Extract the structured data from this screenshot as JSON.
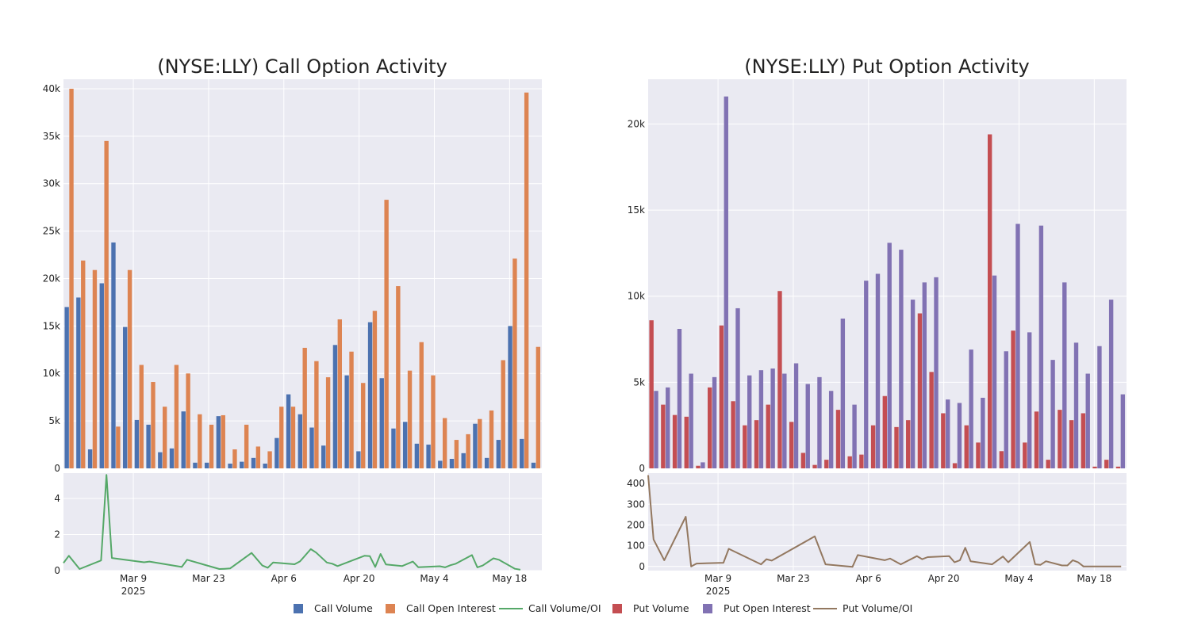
{
  "colors": {
    "call_volume": "#4c72b0",
    "call_open_interest": "#dd8452",
    "call_ratio": "#55a868",
    "put_volume": "#c44e52",
    "put_open_interest": "#8172b3",
    "put_ratio": "#937860",
    "panel_background": "#eaeaf2",
    "grid": "#ffffff"
  },
  "x_axis": {
    "tick_labels": [
      "Mar 9",
      "Mar 23",
      "Apr 6",
      "Apr 20",
      "May 4",
      "May 18"
    ],
    "year_label": "2025"
  },
  "legend": [
    {
      "key": "call_volume",
      "label": "Call Volume",
      "shape": "square"
    },
    {
      "key": "call_open_interest",
      "label": "Call Open Interest",
      "shape": "square"
    },
    {
      "key": "call_ratio",
      "label": "Call Volume/OI",
      "shape": "line"
    },
    {
      "key": "put_volume",
      "label": "Put Volume",
      "shape": "square"
    },
    {
      "key": "put_open_interest",
      "label": "Put Open Interest",
      "shape": "square"
    },
    {
      "key": "put_ratio",
      "label": "Put Volume/OI",
      "shape": "line"
    }
  ],
  "chart_data": [
    {
      "type": "bar",
      "title": "(NYSE:LLY) Call Option Activity",
      "x_start": "2025-02-24",
      "x_end": "2025-05-24",
      "ylim": [
        0,
        41000
      ],
      "yticks": [
        0,
        5000,
        10000,
        15000,
        20000,
        25000,
        30000,
        35000,
        40000
      ],
      "ytick_labels": [
        "0",
        "5k",
        "10k",
        "15k",
        "20k",
        "25k",
        "30k",
        "35k",
        "40k"
      ],
      "grid": true,
      "series": [
        {
          "name": "Call Volume",
          "key": "call_volume",
          "values": [
            17000,
            18000,
            2000,
            19500,
            23800,
            14900,
            5100,
            4600,
            1700,
            2100,
            6000,
            600,
            600,
            5500,
            500,
            700,
            1100,
            500,
            3200,
            7800,
            5700,
            4300,
            2400,
            13000,
            9800,
            1800,
            15400,
            9500,
            4200,
            4900,
            2600,
            2500,
            800,
            1000,
            1600,
            4700,
            1100,
            3000,
            15000,
            3100,
            600
          ]
        },
        {
          "name": "Call Open Interest",
          "key": "call_open_interest",
          "values": [
            40000,
            21900,
            20900,
            34500,
            4400,
            20900,
            10900,
            9100,
            6500,
            10900,
            10000,
            5700,
            4600,
            5600,
            2000,
            4600,
            2300,
            1800,
            6500,
            6500,
            12700,
            11300,
            9600,
            15700,
            12300,
            9000,
            16600,
            28300,
            19200,
            10300,
            13300,
            9800,
            5300,
            3000,
            3600,
            5200,
            6100,
            11400,
            22100,
            39600,
            12800
          ]
        }
      ],
      "ratio": {
        "name": "Call Volume/OI",
        "key": "call_ratio",
        "ylim": [
          0,
          5.4
        ],
        "yticks": [
          0,
          2,
          4
        ],
        "ytick_labels": [
          "0",
          "2",
          "4"
        ],
        "points": [
          [
            "2025-02-24",
            0.42
          ],
          [
            "2025-02-25",
            0.82
          ],
          [
            "2025-02-27",
            0.09
          ],
          [
            "2025-03-03",
            0.56
          ],
          [
            "2025-03-04",
            5.3
          ],
          [
            "2025-03-05",
            0.7
          ],
          [
            "2025-03-11",
            0.46
          ],
          [
            "2025-03-12",
            0.5
          ],
          [
            "2025-03-18",
            0.2
          ],
          [
            "2025-03-19",
            0.6
          ],
          [
            "2025-03-25",
            0.09
          ],
          [
            "2025-03-26",
            0.1
          ],
          [
            "2025-03-27",
            0.12
          ],
          [
            "2025-03-31",
            0.98
          ],
          [
            "2025-04-02",
            0.28
          ],
          [
            "2025-04-03",
            0.16
          ],
          [
            "2025-04-04",
            0.45
          ],
          [
            "2025-04-08",
            0.35
          ],
          [
            "2025-04-09",
            0.51
          ],
          [
            "2025-04-11",
            1.19
          ],
          [
            "2025-04-12",
            1.0
          ],
          [
            "2025-04-14",
            0.45
          ],
          [
            "2025-04-15",
            0.38
          ],
          [
            "2025-04-16",
            0.25
          ],
          [
            "2025-04-21",
            0.82
          ],
          [
            "2025-04-22",
            0.8
          ],
          [
            "2025-04-23",
            0.2
          ],
          [
            "2025-04-24",
            0.92
          ],
          [
            "2025-04-25",
            0.34
          ],
          [
            "2025-04-28",
            0.25
          ],
          [
            "2025-04-30",
            0.5
          ],
          [
            "2025-05-01",
            0.19
          ],
          [
            "2025-05-05",
            0.24
          ],
          [
            "2025-05-06",
            0.18
          ],
          [
            "2025-05-07",
            0.3
          ],
          [
            "2025-05-08",
            0.38
          ],
          [
            "2025-05-11",
            0.86
          ],
          [
            "2025-05-12",
            0.18
          ],
          [
            "2025-05-13",
            0.28
          ],
          [
            "2025-05-15",
            0.68
          ],
          [
            "2025-05-16",
            0.6
          ],
          [
            "2025-05-19",
            0.1
          ],
          [
            "2025-05-20",
            0.05
          ]
        ]
      }
    },
    {
      "type": "bar",
      "title": "(NYSE:LLY) Put Option Activity",
      "x_start": "2025-02-24",
      "x_end": "2025-05-24",
      "ylim": [
        0,
        22600
      ],
      "yticks": [
        0,
        5000,
        10000,
        15000,
        20000
      ],
      "ytick_labels": [
        "0",
        "5k",
        "10k",
        "15k",
        "20k"
      ],
      "grid": true,
      "series": [
        {
          "name": "Put Volume",
          "key": "put_volume",
          "values": [
            8600,
            3700,
            3100,
            3000,
            150,
            4700,
            8300,
            3900,
            2500,
            2800,
            3700,
            10300,
            2700,
            900,
            200,
            500,
            3400,
            700,
            800,
            2500,
            4200,
            2400,
            2800,
            9000,
            5600,
            3200,
            300,
            2500,
            1500,
            19400,
            1000,
            8000,
            1500,
            3300,
            500,
            3400,
            2800,
            3200,
            100,
            500,
            100
          ]
        },
        {
          "name": "Put Open Interest",
          "key": "put_open_interest",
          "values": [
            4500,
            4700,
            8100,
            5500,
            350,
            5300,
            21600,
            9300,
            5400,
            5700,
            5800,
            5500,
            6100,
            4900,
            5300,
            4500,
            8700,
            3700,
            10900,
            11300,
            13100,
            12700,
            9800,
            10800,
            11100,
            4000,
            3800,
            6900,
            4100,
            11200,
            6800,
            14200,
            7900,
            14100,
            6300,
            10800,
            7300,
            5500,
            7100,
            9800,
            4300
          ]
        }
      ],
      "ratio": {
        "name": "Put Volume/OI",
        "key": "put_ratio",
        "ylim": [
          -20,
          450
        ],
        "yticks": [
          0,
          100,
          200,
          300,
          400
        ],
        "ytick_labels": [
          "0",
          "100",
          "200",
          "300",
          "400"
        ],
        "points": [
          [
            "2025-02-24",
            440
          ],
          [
            "2025-02-25",
            130
          ],
          [
            "2025-02-27",
            30
          ],
          [
            "2025-03-03",
            240
          ],
          [
            "2025-03-04",
            0
          ],
          [
            "2025-03-05",
            14
          ],
          [
            "2025-03-10",
            18
          ],
          [
            "2025-03-11",
            85
          ],
          [
            "2025-03-17",
            10
          ],
          [
            "2025-03-18",
            35
          ],
          [
            "2025-03-19",
            28
          ],
          [
            "2025-03-27",
            145
          ],
          [
            "2025-03-29",
            10
          ],
          [
            "2025-04-03",
            -2
          ],
          [
            "2025-04-04",
            55
          ],
          [
            "2025-04-09",
            30
          ],
          [
            "2025-04-10",
            38
          ],
          [
            "2025-04-12",
            10
          ],
          [
            "2025-04-15",
            50
          ],
          [
            "2025-04-16",
            35
          ],
          [
            "2025-04-17",
            45
          ],
          [
            "2025-04-21",
            50
          ],
          [
            "2025-04-22",
            20
          ],
          [
            "2025-04-23",
            30
          ],
          [
            "2025-04-24",
            90
          ],
          [
            "2025-04-25",
            25
          ],
          [
            "2025-04-29",
            10
          ],
          [
            "2025-05-01",
            48
          ],
          [
            "2025-05-02",
            20
          ],
          [
            "2025-05-06",
            118
          ],
          [
            "2025-05-07",
            10
          ],
          [
            "2025-05-08",
            8
          ],
          [
            "2025-05-09",
            25
          ],
          [
            "2025-05-12",
            5
          ],
          [
            "2025-05-13",
            5
          ],
          [
            "2025-05-14",
            30
          ],
          [
            "2025-05-15",
            20
          ],
          [
            "2025-05-16",
            0
          ],
          [
            "2025-05-23",
            0
          ]
        ]
      }
    }
  ]
}
